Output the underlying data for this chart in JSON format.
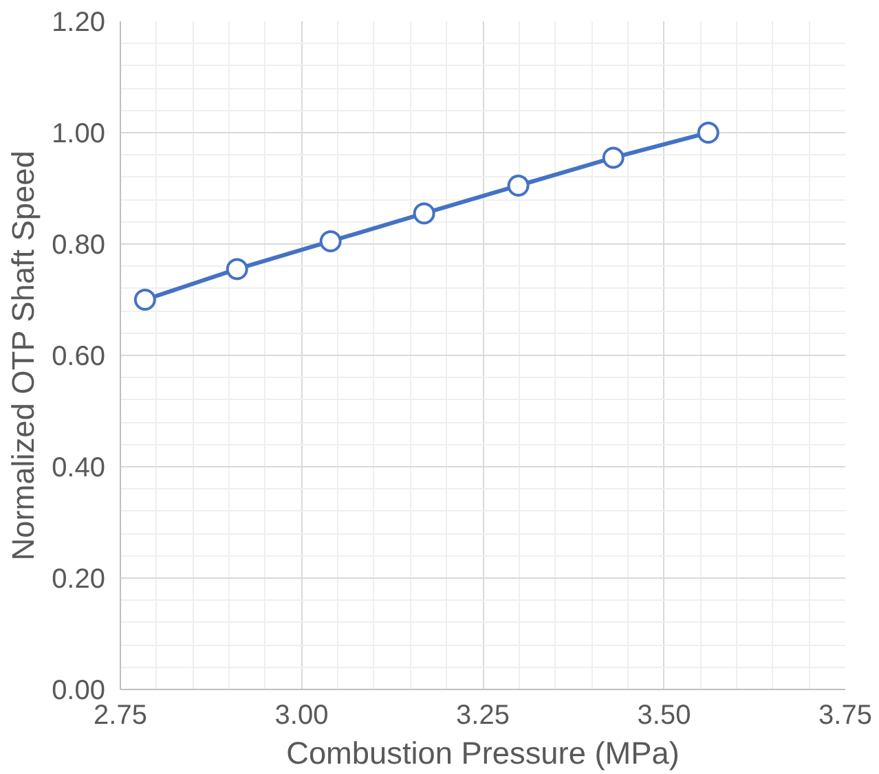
{
  "chart_data": {
    "type": "line",
    "xlabel": "Combustion Pressure (MPa)",
    "ylabel": "Normalized OTP Shaft Speed",
    "x": [
      2.784,
      2.911,
      3.04,
      3.169,
      3.299,
      3.43,
      3.561
    ],
    "series": [
      {
        "color": "#4472c4",
        "values": [
          0.7,
          0.755,
          0.805,
          0.855,
          0.905,
          0.955,
          1.0
        ]
      }
    ],
    "xlim": [
      2.75,
      3.75
    ],
    "xticks": [
      2.75,
      {
        "value": 3,
        "label": "3.00"
      },
      3.25,
      {
        "value": 3.5,
        "label": "3.50"
      },
      3.75
    ],
    "ylim": [
      0,
      1.2
    ],
    "yticks": [
      {
        "value": 0,
        "label": "0.00"
      },
      {
        "value": 0.2,
        "label": "0.20"
      },
      {
        "value": 0.4,
        "label": "0.40"
      },
      {
        "value": 0.6,
        "label": "0.60"
      },
      {
        "value": 0.8,
        "label": "0.80"
      },
      {
        "value": 1,
        "label": "1.00"
      },
      {
        "value": 1.2,
        "label": "1.20"
      }
    ],
    "grid": true,
    "marker": "circle",
    "line_style": "solid"
  }
}
